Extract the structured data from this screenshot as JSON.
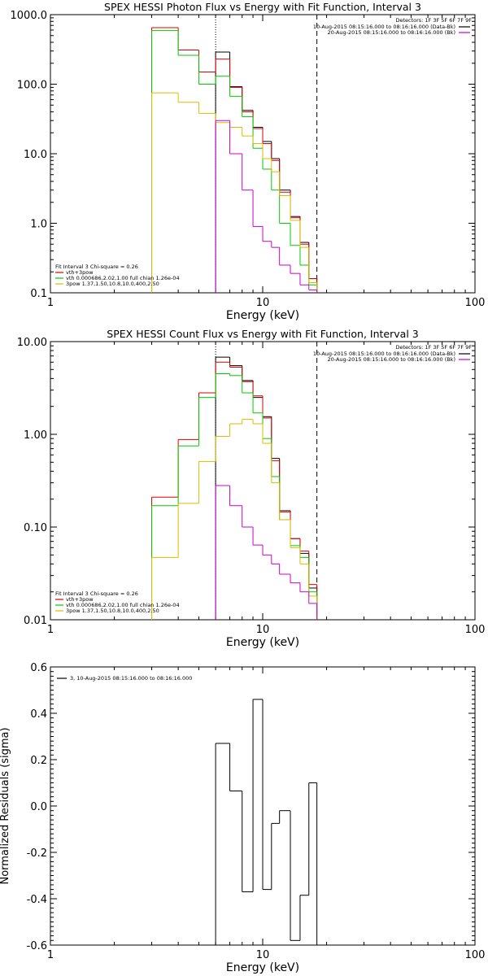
{
  "chart_data": [
    {
      "type": "line",
      "step": true,
      "title": "SPEX HESSI Photon Flux vs Energy with Fit Function, Interval 3",
      "xlabel": "Energy (keV)",
      "ylabel": "",
      "xscale": "log",
      "yscale": "log",
      "xlim": [
        1,
        100
      ],
      "ylim": [
        0.1,
        1000
      ],
      "x_ticks": [
        {
          "v": 1,
          "label": "1"
        },
        {
          "v": 10,
          "label": "10"
        },
        {
          "v": 100,
          "label": "100"
        }
      ],
      "y_ticks": [
        {
          "v": 0.1,
          "label": "0.1"
        },
        {
          "v": 1,
          "label": "1.0"
        },
        {
          "v": 10,
          "label": "10.0"
        },
        {
          "v": 100,
          "label": "100.0"
        },
        {
          "v": 1000,
          "label": "1000.0"
        }
      ],
      "fit_boundary_lines": [
        {
          "x": 6.0,
          "style": "dotted"
        },
        {
          "x": 18.0,
          "style": "dashed"
        }
      ],
      "legend_right": {
        "header": "Detectors: 1F 3F 5F 6F 7F 9F",
        "entries": [
          {
            "text": "10-Aug-2015 08:15:16.000 to 08:16:16.000 (Data-Bk)",
            "color": "#000000"
          },
          {
            "text": "20-Aug-2015 08:15:16.000 to 08:16:16.000 (Bk)",
            "color": "#cc00cc"
          }
        ]
      },
      "legend_left": {
        "header": "Fit Interval 3   Chi-square = 0.26",
        "entries": [
          {
            "text": "vth+3pow",
            "color": "#dd0000"
          },
          {
            "text": "vth 0.000686,2.02,1.00  full chian 1.26e-04",
            "color": "#00cc00"
          },
          {
            "text": "3pow 1.37,1.50,10.8,10.0,400,2.50",
            "color": "#ddbb00"
          }
        ]
      },
      "bin_edges": [
        3.0,
        4.0,
        5.0,
        6.0,
        7.0,
        8.0,
        9.0,
        10.0,
        11.0,
        12.0,
        13.5,
        15.0,
        16.5,
        18.0
      ],
      "series": [
        {
          "color": "#000000",
          "values": [
            null,
            null,
            null,
            290,
            92,
            42,
            24,
            15,
            8.5,
            3.0,
            1.25,
            0.53,
            0.16
          ]
        },
        {
          "color": "#dd0000",
          "values": [
            650,
            310,
            150,
            230,
            90,
            40,
            23,
            14,
            8.0,
            2.8,
            1.2,
            0.5,
            0.16
          ]
        },
        {
          "color": "#00cc00",
          "values": [
            590,
            260,
            100,
            130,
            67,
            34,
            12,
            6.0,
            3.0,
            1.0,
            0.48,
            0.25,
            0.13
          ]
        },
        {
          "color": "#ddbb00",
          "values": [
            75,
            55,
            38,
            28,
            24,
            18,
            14,
            8.5,
            5.5,
            2.5,
            1.1,
            0.45,
            0.14
          ]
        },
        {
          "color": "#cc00cc",
          "values": [
            null,
            null,
            null,
            30,
            10,
            3.0,
            0.9,
            0.55,
            0.45,
            0.25,
            0.19,
            0.13,
            0.11
          ]
        }
      ]
    },
    {
      "type": "line",
      "step": true,
      "title": "SPEX HESSI Count Flux vs Energy with Fit Function, Interval 3",
      "xlabel": "Energy (keV)",
      "ylabel": "",
      "xscale": "log",
      "yscale": "log",
      "xlim": [
        1,
        100
      ],
      "ylim": [
        0.01,
        10
      ],
      "x_ticks": [
        {
          "v": 1,
          "label": "1"
        },
        {
          "v": 10,
          "label": "10"
        },
        {
          "v": 100,
          "label": "100"
        }
      ],
      "y_ticks": [
        {
          "v": 0.01,
          "label": "0.01"
        },
        {
          "v": 0.1,
          "label": "0.10"
        },
        {
          "v": 1,
          "label": "1.00"
        },
        {
          "v": 10,
          "label": "10.00"
        }
      ],
      "fit_boundary_lines": [
        {
          "x": 6.0,
          "style": "dotted"
        },
        {
          "x": 18.0,
          "style": "dashed"
        }
      ],
      "legend_right": {
        "header": "Detectors: 1F 3F 5F 6F 7F 9F",
        "entries": [
          {
            "text": "10-Aug-2015 08:15:16.000 to 08:16:16.000 (Data-Bk)",
            "color": "#000000"
          },
          {
            "text": "20-Aug-2015 08:15:16.000 to 08:16:16.000 (Bk)",
            "color": "#cc00cc"
          }
        ]
      },
      "legend_left": {
        "header": "Fit Interval 3   Chi-square = 0.26",
        "entries": [
          {
            "text": "vth+3pow",
            "color": "#dd0000"
          },
          {
            "text": "vth 0.000686,2.02,1.00  full chian 1.26e-04",
            "color": "#00cc00"
          },
          {
            "text": "3pow 1.37,1.50,10.8,10.0,400,2.50",
            "color": "#ddbb00"
          }
        ]
      },
      "bin_edges": [
        3.0,
        4.0,
        5.0,
        6.0,
        7.0,
        8.0,
        9.0,
        10.0,
        11.0,
        12.0,
        13.5,
        15.0,
        16.5,
        18.0
      ],
      "series": [
        {
          "color": "#000000",
          "values": [
            null,
            null,
            null,
            6.8,
            5.5,
            3.8,
            2.5,
            1.55,
            0.55,
            0.15,
            0.075,
            0.052,
            0.022
          ]
        },
        {
          "color": "#dd0000",
          "values": [
            0.21,
            0.88,
            2.8,
            6.0,
            5.3,
            3.7,
            2.6,
            1.5,
            0.52,
            0.145,
            0.075,
            0.055,
            0.024
          ]
        },
        {
          "color": "#00cc00",
          "values": [
            0.17,
            0.75,
            2.5,
            4.5,
            4.3,
            2.8,
            1.7,
            0.9,
            0.35,
            0.12,
            0.063,
            0.047,
            0.02
          ]
        },
        {
          "color": "#ddbb00",
          "values": [
            0.047,
            0.18,
            0.51,
            0.95,
            1.3,
            1.45,
            1.3,
            0.8,
            0.3,
            0.12,
            0.06,
            0.04,
            0.018
          ]
        },
        {
          "color": "#cc00cc",
          "values": [
            null,
            null,
            null,
            0.28,
            0.17,
            0.1,
            0.064,
            0.05,
            0.04,
            0.031,
            0.025,
            0.02,
            0.015
          ]
        }
      ]
    },
    {
      "type": "line",
      "step": true,
      "title": "",
      "xlabel": "Energy (keV)",
      "ylabel": "Normalized Residuals (sigma)",
      "xscale": "log",
      "yscale": "linear",
      "xlim": [
        1,
        100
      ],
      "ylim": [
        -0.6,
        0.6
      ],
      "x_ticks": [
        {
          "v": 1,
          "label": "1"
        },
        {
          "v": 10,
          "label": "10"
        },
        {
          "v": 100,
          "label": "100"
        }
      ],
      "y_ticks": [
        {
          "v": -0.6,
          "label": "-0.6"
        },
        {
          "v": -0.4,
          "label": "-0.4"
        },
        {
          "v": -0.2,
          "label": "-0.2"
        },
        {
          "v": 0.0,
          "label": "0.0"
        },
        {
          "v": 0.2,
          "label": "0.2"
        },
        {
          "v": 0.4,
          "label": "0.4"
        },
        {
          "v": 0.6,
          "label": "0.6"
        }
      ],
      "legend": {
        "entries": [
          {
            "text": "3, 10-Aug-2015 08:15:16.000 to 08:16:16.000",
            "color": "#000000"
          }
        ]
      },
      "bin_edges": [
        6.0,
        7.0,
        8.0,
        9.0,
        10.0,
        11.0,
        12.0,
        13.5,
        15.0,
        16.5,
        18.0
      ],
      "series": [
        {
          "color": "#000000",
          "values": [
            0.27,
            0.065,
            -0.37,
            0.46,
            -0.36,
            -0.075,
            -0.02,
            -0.58,
            -0.385,
            0.1
          ]
        }
      ]
    }
  ]
}
